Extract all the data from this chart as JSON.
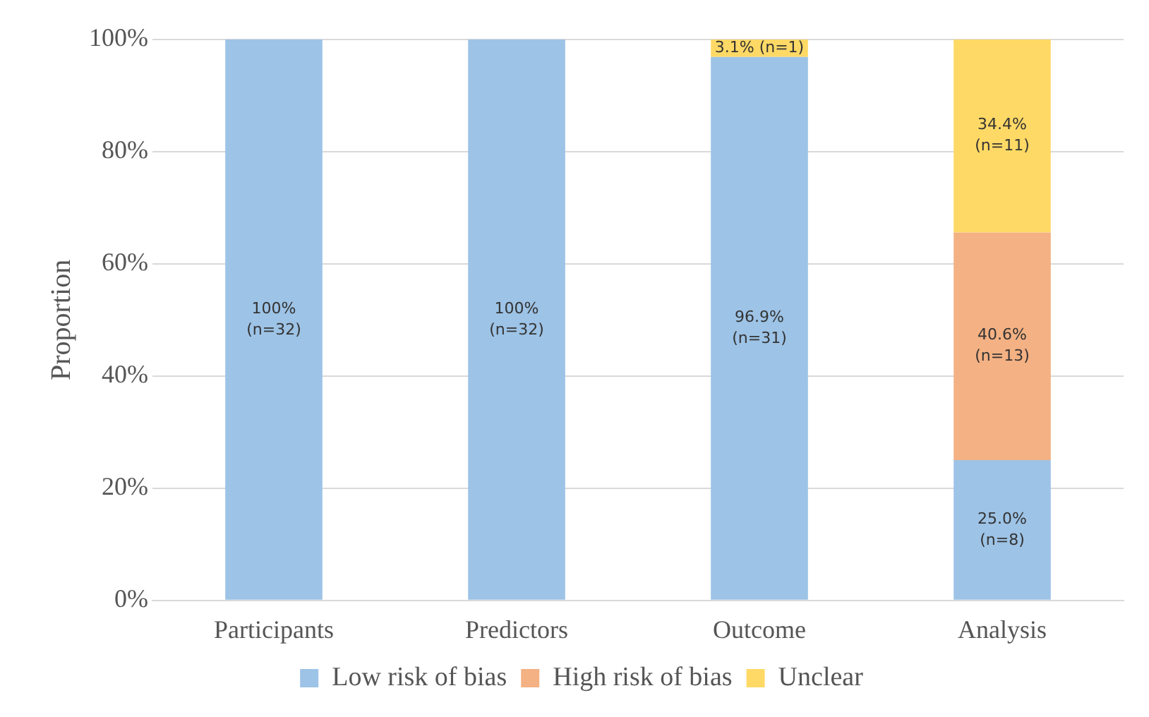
{
  "chart_data": {
    "type": "bar",
    "stacked": true,
    "ylabel": "Proportion",
    "categories": [
      "Participants",
      "Predictors",
      "Outcome",
      "Analysis"
    ],
    "series": [
      {
        "name": "Low risk of bias",
        "color": "#9dc3e6",
        "values": [
          100,
          100,
          96.9,
          25.0
        ],
        "value_labels": [
          "100%\n(n=32)",
          "100%\n(n=32)",
          "96.9%\n(n=31)",
          "25.0%\n(n=8)"
        ]
      },
      {
        "name": "High risk of bias",
        "color": "#f4b183",
        "values": [
          0,
          0,
          0,
          40.6
        ],
        "value_labels": [
          null,
          null,
          null,
          "40.6%\n(n=13)"
        ]
      },
      {
        "name": "Unclear",
        "color": "#ffd966",
        "values": [
          0,
          0,
          3.1,
          34.4
        ],
        "value_labels": [
          null,
          null,
          "3.1% (n=1)",
          "34.4%\n(n=11)"
        ]
      }
    ],
    "ylim": [
      0,
      100
    ],
    "yticks": [
      {
        "value": 0,
        "label": "0%"
      },
      {
        "value": 20,
        "label": "20%"
      },
      {
        "value": 40,
        "label": "40%"
      },
      {
        "value": 60,
        "label": "60%"
      },
      {
        "value": 80,
        "label": "80%"
      },
      {
        "value": 100,
        "label": "100%"
      }
    ],
    "grid": "y",
    "legend": "bottom"
  }
}
